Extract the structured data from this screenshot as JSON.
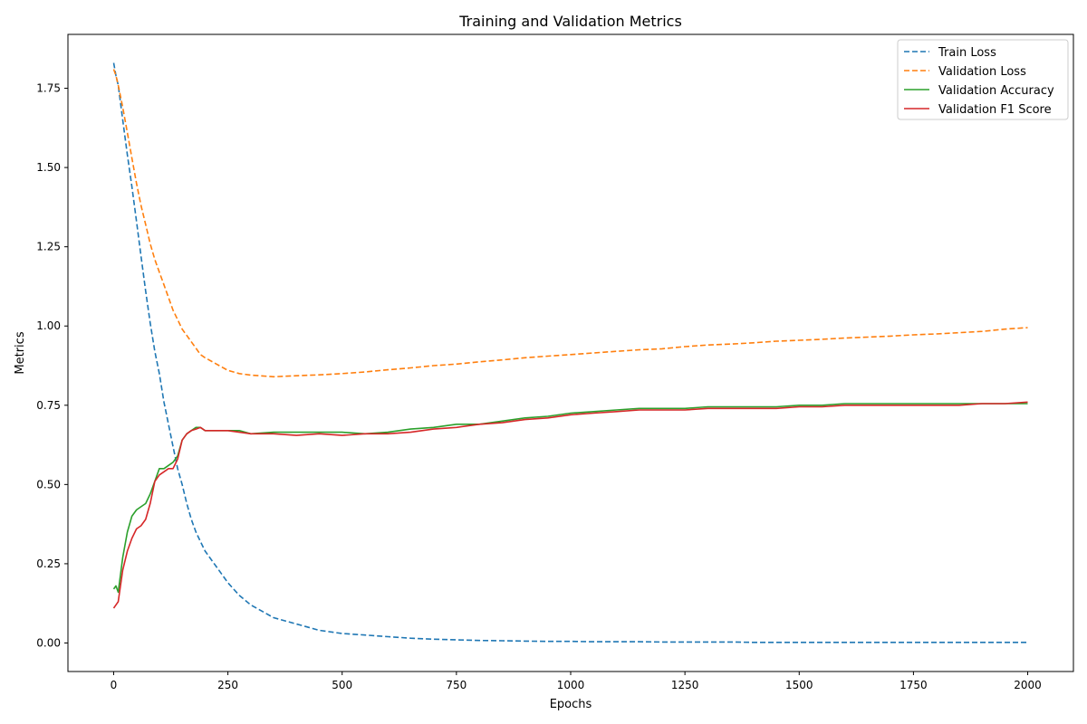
{
  "chart_data": {
    "type": "line",
    "title": "Training and Validation Metrics",
    "xlabel": "Epochs",
    "ylabel": "Metrics",
    "xlim": [
      -100,
      2100
    ],
    "ylim": [
      -0.09,
      1.92
    ],
    "xticks": [
      0,
      250,
      500,
      750,
      1000,
      1250,
      1500,
      1750,
      2000
    ],
    "yticks": [
      0.0,
      0.25,
      0.5,
      0.75,
      1.0,
      1.25,
      1.5,
      1.75
    ],
    "xtick_labels": [
      "0",
      "250",
      "500",
      "750",
      "1000",
      "1250",
      "1500",
      "1750",
      "2000"
    ],
    "ytick_labels": [
      "0.00",
      "0.25",
      "0.50",
      "0.75",
      "1.00",
      "1.25",
      "1.50",
      "1.75"
    ],
    "grid": false,
    "legend_position": "top-right",
    "x": [
      0,
      5,
      10,
      20,
      30,
      40,
      50,
      60,
      70,
      80,
      90,
      100,
      110,
      120,
      130,
      140,
      150,
      160,
      170,
      180,
      190,
      200,
      225,
      250,
      275,
      300,
      350,
      400,
      450,
      500,
      550,
      600,
      650,
      700,
      750,
      800,
      850,
      900,
      950,
      1000,
      1050,
      1100,
      1150,
      1200,
      1250,
      1300,
      1350,
      1400,
      1450,
      1500,
      1550,
      1600,
      1650,
      1700,
      1750,
      1800,
      1850,
      1900,
      1950,
      2000
    ],
    "series": [
      {
        "name": "Train Loss",
        "color": "#1f77b4",
        "style": "dashed",
        "values": [
          1.83,
          1.79,
          1.76,
          1.65,
          1.54,
          1.44,
          1.33,
          1.22,
          1.11,
          1.01,
          0.92,
          0.85,
          0.76,
          0.69,
          0.62,
          0.55,
          0.5,
          0.44,
          0.39,
          0.35,
          0.32,
          0.29,
          0.24,
          0.19,
          0.15,
          0.12,
          0.08,
          0.06,
          0.04,
          0.03,
          0.025,
          0.02,
          0.015,
          0.012,
          0.01,
          0.008,
          0.007,
          0.006,
          0.005,
          0.005,
          0.004,
          0.004,
          0.004,
          0.003,
          0.003,
          0.003,
          0.003,
          0.002,
          0.002,
          0.002,
          0.002,
          0.002,
          0.002,
          0.002,
          0.002,
          0.002,
          0.002,
          0.002,
          0.002,
          0.002
        ]
      },
      {
        "name": "Validation Loss",
        "color": "#ff7f0e",
        "style": "dashed",
        "values": [
          1.81,
          1.79,
          1.76,
          1.69,
          1.61,
          1.53,
          1.45,
          1.38,
          1.32,
          1.26,
          1.21,
          1.17,
          1.13,
          1.09,
          1.05,
          1.02,
          0.99,
          0.97,
          0.95,
          0.93,
          0.91,
          0.9,
          0.88,
          0.86,
          0.85,
          0.845,
          0.84,
          0.843,
          0.846,
          0.85,
          0.855,
          0.862,
          0.868,
          0.875,
          0.88,
          0.887,
          0.893,
          0.9,
          0.905,
          0.91,
          0.915,
          0.92,
          0.925,
          0.928,
          0.935,
          0.94,
          0.943,
          0.947,
          0.952,
          0.955,
          0.958,
          0.962,
          0.965,
          0.968,
          0.972,
          0.975,
          0.979,
          0.983,
          0.99,
          0.995
        ]
      },
      {
        "name": "Validation Accuracy",
        "color": "#2ca02c",
        "style": "solid",
        "values": [
          0.17,
          0.18,
          0.16,
          0.27,
          0.35,
          0.4,
          0.42,
          0.43,
          0.44,
          0.47,
          0.51,
          0.55,
          0.55,
          0.56,
          0.57,
          0.59,
          0.64,
          0.66,
          0.67,
          0.68,
          0.68,
          0.67,
          0.67,
          0.67,
          0.67,
          0.66,
          0.665,
          0.665,
          0.665,
          0.665,
          0.66,
          0.665,
          0.675,
          0.68,
          0.69,
          0.69,
          0.7,
          0.71,
          0.715,
          0.725,
          0.73,
          0.735,
          0.74,
          0.74,
          0.74,
          0.745,
          0.745,
          0.745,
          0.745,
          0.75,
          0.75,
          0.755,
          0.755,
          0.755,
          0.755,
          0.755,
          0.755,
          0.755,
          0.755,
          0.755
        ]
      },
      {
        "name": "Validation F1 Score",
        "color": "#d62728",
        "style": "solid",
        "values": [
          0.11,
          0.12,
          0.13,
          0.23,
          0.29,
          0.33,
          0.36,
          0.37,
          0.39,
          0.44,
          0.51,
          0.53,
          0.54,
          0.55,
          0.55,
          0.58,
          0.64,
          0.66,
          0.67,
          0.675,
          0.68,
          0.67,
          0.67,
          0.67,
          0.665,
          0.66,
          0.66,
          0.655,
          0.66,
          0.655,
          0.66,
          0.66,
          0.665,
          0.675,
          0.68,
          0.69,
          0.695,
          0.705,
          0.71,
          0.72,
          0.725,
          0.73,
          0.735,
          0.735,
          0.735,
          0.74,
          0.74,
          0.74,
          0.74,
          0.745,
          0.745,
          0.75,
          0.75,
          0.75,
          0.75,
          0.75,
          0.75,
          0.755,
          0.755,
          0.76
        ]
      }
    ]
  }
}
